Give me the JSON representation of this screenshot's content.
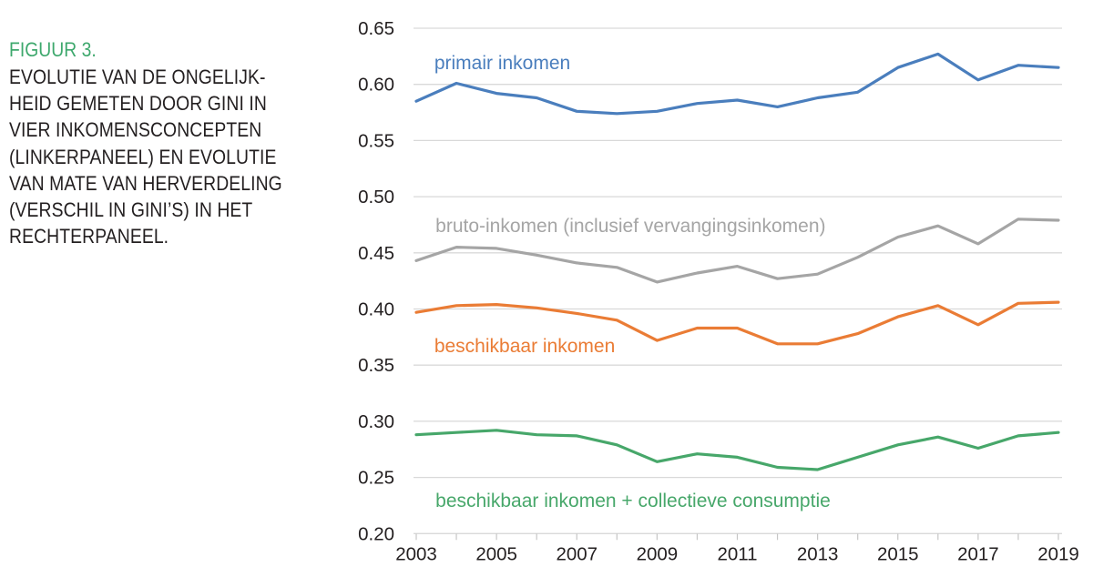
{
  "figure_caption": {
    "label": "FIGUUR 3.",
    "lines": [
      "EVOLUTIE VAN DE ONGELIJK-",
      "HEID GEMETEN DOOR GINI IN",
      "VIER INKOMENSCONCEPTEN",
      "(LINKERPANEEL) EN EVOLUTIE",
      "VAN MATE VAN HERVERDELING",
      "(VERSCHIL IN GINI’S) IN HET",
      "RECHTERPANEEL."
    ]
  },
  "colors": {
    "figure_label_green": "#3EA86D",
    "caption_text": "#231F20",
    "axis_text": "#231F20",
    "gridline": "#D9D9D9",
    "tick": "#C6C6C6",
    "background": "#FFFFFF"
  },
  "chart_data": {
    "type": "line",
    "title": "",
    "xlabel": "",
    "ylabel": "",
    "x": [
      2003,
      2004,
      2005,
      2006,
      2007,
      2008,
      2009,
      2010,
      2011,
      2012,
      2013,
      2014,
      2015,
      2016,
      2017,
      2018,
      2019
    ],
    "series": [
      {
        "name": "primair inkomen",
        "color": "#4A7EBD",
        "values": [
          0.585,
          0.601,
          0.592,
          0.588,
          0.576,
          0.574,
          0.576,
          0.583,
          0.586,
          0.58,
          0.588,
          0.593,
          0.615,
          0.627,
          0.604,
          0.617,
          0.615
        ],
        "label_anchor": {
          "year": 2003.45,
          "value": 0.6135
        }
      },
      {
        "name": "bruto-inkomen (inclusief vervangingsinkomen)",
        "color": "#A5A5A5",
        "values": [
          0.443,
          0.455,
          0.454,
          0.448,
          0.441,
          0.437,
          0.424,
          0.432,
          0.438,
          0.427,
          0.431,
          0.446,
          0.464,
          0.474,
          0.458,
          0.48,
          0.479
        ],
        "label_anchor": {
          "year": 2003.48,
          "value": 0.4685
        }
      },
      {
        "name": "beschikbaar inkomen",
        "color": "#EA7C35",
        "values": [
          0.397,
          0.403,
          0.404,
          0.401,
          0.396,
          0.39,
          0.372,
          0.383,
          0.383,
          0.369,
          0.369,
          0.378,
          0.393,
          0.403,
          0.386,
          0.405,
          0.406
        ],
        "label_anchor": {
          "year": 2003.45,
          "value": 0.3615
        }
      },
      {
        "name": "beschikbaar inkomen + collectieve consumptie",
        "color": "#47A76A",
        "values": [
          0.288,
          0.29,
          0.292,
          0.288,
          0.287,
          0.279,
          0.264,
          0.271,
          0.268,
          0.259,
          0.257,
          0.268,
          0.279,
          0.286,
          0.276,
          0.287,
          0.29
        ],
        "label_anchor": {
          "year": 2003.48,
          "value": 0.2237
        }
      }
    ],
    "ylim": [
      0.2,
      0.65
    ],
    "ytick_step": 0.05,
    "ytick_labels": [
      "0.65",
      "0.60",
      "0.55",
      "0.50",
      "0.45",
      "0.40",
      "0.35",
      "0.30",
      "0.25",
      "0.20"
    ],
    "xtick_label_years": [
      2003,
      2005,
      2007,
      2009,
      2011,
      2013,
      2015,
      2017,
      2019
    ],
    "grid": true,
    "legend": "inline-series-labels"
  }
}
